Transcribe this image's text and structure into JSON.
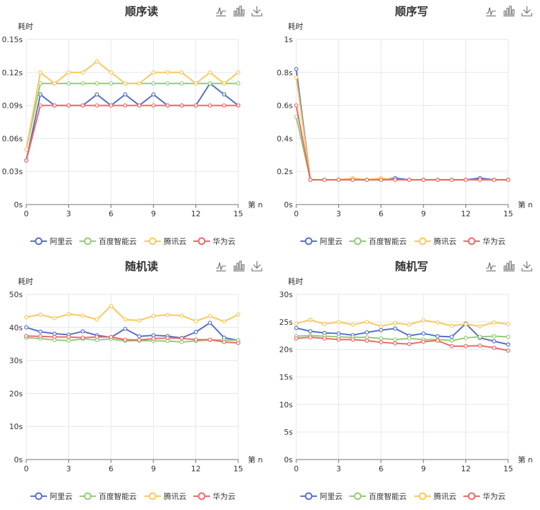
{
  "series_colors": {
    "阿里云": "#5470c6",
    "百度智能云": "#91cc75",
    "腾讯云": "#fac858",
    "华为云": "#ee6666"
  },
  "toolbox": [
    "line-chart-icon",
    "bar-chart-icon",
    "download-icon"
  ],
  "charts": [
    {
      "title": "顺序读",
      "ylabel": "耗时",
      "xlabel": "第 n",
      "legend": [
        "阿里云",
        "百度智能云",
        "腾讯云",
        "华为云"
      ]
    },
    {
      "title": "顺序写",
      "ylabel": "耗时",
      "xlabel": "第 n",
      "legend": [
        "阿里云",
        "百度智能云",
        "腾讯云",
        "华为云"
      ]
    },
    {
      "title": "随机读",
      "ylabel": "耗时",
      "xlabel": "第 n",
      "legend": [
        "阿里云",
        "百度智能云",
        "腾讯云",
        "华为云"
      ]
    },
    {
      "title": "随机写",
      "ylabel": "耗时",
      "xlabel": "第 n",
      "legend": [
        "阿里云",
        "百度智能云",
        "腾讯云",
        "华为云"
      ]
    }
  ],
  "chart_data": [
    {
      "type": "line",
      "title": "顺序读",
      "xlabel": "第 n",
      "ylabel": "耗时",
      "x": [
        0,
        1,
        2,
        3,
        4,
        5,
        6,
        7,
        8,
        9,
        10,
        11,
        12,
        13,
        14,
        15
      ],
      "xticks": [
        0,
        3,
        6,
        9,
        12,
        15
      ],
      "yticks": [
        "0s",
        "0.03s",
        "0.06s",
        "0.09s",
        "0.12s",
        "0.15s"
      ],
      "ylim": [
        0,
        0.15
      ],
      "grid": true,
      "legend_position": "bottom",
      "series": [
        {
          "name": "阿里云",
          "values": [
            0.04,
            0.1,
            0.09,
            0.09,
            0.09,
            0.1,
            0.09,
            0.1,
            0.09,
            0.1,
            0.09,
            0.09,
            0.09,
            0.11,
            0.1,
            0.09
          ]
        },
        {
          "name": "百度智能云",
          "values": [
            0.05,
            0.11,
            0.11,
            0.11,
            0.11,
            0.11,
            0.11,
            0.11,
            0.11,
            0.11,
            0.11,
            0.11,
            0.11,
            0.11,
            0.11,
            0.11
          ]
        },
        {
          "name": "腾讯云",
          "values": [
            0.05,
            0.12,
            0.11,
            0.12,
            0.12,
            0.13,
            0.12,
            0.11,
            0.11,
            0.12,
            0.12,
            0.12,
            0.11,
            0.12,
            0.11,
            0.12
          ]
        },
        {
          "name": "华为云",
          "values": [
            0.04,
            0.09,
            0.09,
            0.09,
            0.09,
            0.09,
            0.09,
            0.09,
            0.09,
            0.09,
            0.09,
            0.09,
            0.09,
            0.09,
            0.09,
            0.09
          ]
        }
      ]
    },
    {
      "type": "line",
      "title": "顺序写",
      "xlabel": "第 n",
      "ylabel": "耗时",
      "x": [
        0,
        1,
        2,
        3,
        4,
        5,
        6,
        7,
        8,
        9,
        10,
        11,
        12,
        13,
        14,
        15
      ],
      "xticks": [
        0,
        3,
        6,
        9,
        12,
        15
      ],
      "yticks": [
        "0s",
        "0.2s",
        "0.4s",
        "0.6s",
        "0.8s",
        "1s"
      ],
      "ylim": [
        0,
        1
      ],
      "grid": true,
      "legend_position": "bottom",
      "series": [
        {
          "name": "阿里云",
          "values": [
            0.82,
            0.15,
            0.15,
            0.15,
            0.15,
            0.15,
            0.15,
            0.16,
            0.15,
            0.15,
            0.15,
            0.15,
            0.15,
            0.16,
            0.15,
            0.15
          ]
        },
        {
          "name": "百度智能云",
          "values": [
            0.53,
            0.15,
            0.15,
            0.15,
            0.15,
            0.15,
            0.15,
            0.15,
            0.15,
            0.15,
            0.15,
            0.15,
            0.15,
            0.15,
            0.15,
            0.15
          ]
        },
        {
          "name": "腾讯云",
          "values": [
            0.77,
            0.15,
            0.15,
            0.15,
            0.16,
            0.15,
            0.16,
            0.15,
            0.15,
            0.15,
            0.15,
            0.15,
            0.15,
            0.15,
            0.15,
            0.15
          ]
        },
        {
          "name": "华为云",
          "values": [
            0.6,
            0.15,
            0.15,
            0.15,
            0.15,
            0.15,
            0.15,
            0.15,
            0.15,
            0.15,
            0.15,
            0.15,
            0.15,
            0.15,
            0.15,
            0.15
          ]
        }
      ]
    },
    {
      "type": "line",
      "title": "随机读",
      "xlabel": "第 n",
      "ylabel": "耗时",
      "x": [
        0,
        1,
        2,
        3,
        4,
        5,
        6,
        7,
        8,
        9,
        10,
        11,
        12,
        13,
        14,
        15
      ],
      "xticks": [
        0,
        3,
        6,
        9,
        12,
        15
      ],
      "yticks": [
        "0s",
        "10s",
        "20s",
        "30s",
        "40s",
        "50s"
      ],
      "ylim": [
        0,
        50
      ],
      "grid": true,
      "legend_position": "bottom",
      "series": [
        {
          "name": "阿里云",
          "values": [
            40.0,
            38.7,
            38.1,
            37.8,
            38.8,
            37.6,
            37.0,
            39.6,
            37.3,
            37.6,
            37.4,
            36.8,
            38.6,
            41.4,
            36.9,
            36.1
          ]
        },
        {
          "name": "百度智能云",
          "values": [
            36.9,
            36.6,
            36.2,
            36.0,
            36.5,
            36.2,
            36.5,
            35.9,
            36.0,
            35.9,
            35.9,
            35.6,
            35.9,
            36.2,
            36.2,
            36.1
          ]
        },
        {
          "name": "腾讯云",
          "values": [
            43.1,
            43.9,
            42.8,
            44.0,
            43.6,
            42.4,
            46.5,
            42.4,
            42.1,
            43.5,
            43.8,
            43.6,
            41.9,
            43.4,
            41.8,
            43.9
          ]
        },
        {
          "name": "华为云",
          "values": [
            37.4,
            37.3,
            37.1,
            37.1,
            36.9,
            37.1,
            37.1,
            36.3,
            36.2,
            36.6,
            36.8,
            36.7,
            36.3,
            36.3,
            35.6,
            35.3
          ]
        }
      ]
    },
    {
      "type": "line",
      "title": "随机写",
      "xlabel": "第 n",
      "ylabel": "耗时",
      "x": [
        0,
        1,
        2,
        3,
        4,
        5,
        6,
        7,
        8,
        9,
        10,
        11,
        12,
        13,
        14,
        15
      ],
      "xticks": [
        0,
        3,
        6,
        9,
        12,
        15
      ],
      "yticks": [
        "0s",
        "5s",
        "10s",
        "15s",
        "20s",
        "25s",
        "30s"
      ],
      "ylim": [
        0,
        30
      ],
      "grid": true,
      "legend_position": "bottom",
      "series": [
        {
          "name": "阿里云",
          "values": [
            23.9,
            23.3,
            23.0,
            22.9,
            22.6,
            23.1,
            23.5,
            23.8,
            22.5,
            22.9,
            22.4,
            22.3,
            24.7,
            22.1,
            21.5,
            20.9
          ]
        },
        {
          "name": "百度智能云",
          "values": [
            22.4,
            22.5,
            22.4,
            22.3,
            22.2,
            22.2,
            22.0,
            21.8,
            22.0,
            21.8,
            21.8,
            21.6,
            22.1,
            22.3,
            22.4,
            22.3
          ]
        },
        {
          "name": "腾讯云",
          "values": [
            24.7,
            25.4,
            24.6,
            25.0,
            24.5,
            25.0,
            24.2,
            24.8,
            24.5,
            25.3,
            24.9,
            24.3,
            24.6,
            24.2,
            24.9,
            24.6
          ]
        },
        {
          "name": "华为云",
          "values": [
            22.0,
            22.2,
            22.0,
            21.8,
            21.8,
            21.6,
            21.3,
            21.1,
            21.0,
            21.4,
            21.6,
            20.6,
            20.6,
            20.7,
            20.3,
            19.8
          ]
        }
      ]
    }
  ]
}
